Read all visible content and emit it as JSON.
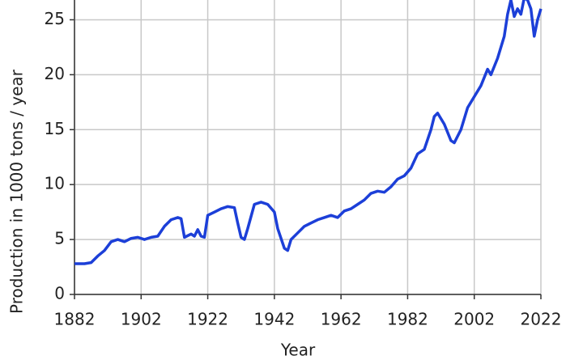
{
  "chart_data": {
    "type": "line",
    "xlabel": "Year",
    "ylabel": "Production in 1000 tons / year",
    "x": [
      1882,
      1885,
      1887,
      1889,
      1891,
      1893,
      1895,
      1897,
      1899,
      1901,
      1903,
      1905,
      1907,
      1909,
      1911,
      1913,
      1914,
      1915,
      1917,
      1918,
      1919,
      1920,
      1921,
      1922,
      1924,
      1926,
      1928,
      1930,
      1931,
      1932,
      1933,
      1934,
      1936,
      1938,
      1940,
      1942,
      1943,
      1945,
      1946,
      1947,
      1949,
      1951,
      1953,
      1955,
      1957,
      1959,
      1961,
      1963,
      1965,
      1967,
      1969,
      1971,
      1973,
      1975,
      1977,
      1979,
      1981,
      1983,
      1985,
      1987,
      1989,
      1990,
      1991,
      1993,
      1995,
      1996,
      1998,
      2000,
      2002,
      2004,
      2006,
      2007,
      2009,
      2011,
      2012,
      2013,
      2014,
      2015,
      2016,
      2017,
      2018,
      2019,
      2020,
      2021,
      2022
    ],
    "series": [
      {
        "name": "Production",
        "color": "#1c3fd8",
        "values": [
          2.8,
          2.8,
          2.9,
          3.5,
          4.0,
          4.8,
          5.0,
          4.8,
          5.1,
          5.2,
          5.0,
          5.2,
          5.3,
          6.2,
          6.8,
          7.0,
          6.9,
          5.2,
          5.5,
          5.3,
          5.9,
          5.3,
          5.2,
          7.2,
          7.5,
          7.8,
          8.0,
          7.9,
          6.5,
          5.2,
          5.0,
          6.0,
          8.2,
          8.4,
          8.2,
          7.5,
          6.0,
          4.2,
          4.0,
          5.0,
          5.6,
          6.2,
          6.5,
          6.8,
          7.0,
          7.2,
          7.0,
          7.6,
          7.8,
          8.2,
          8.6,
          9.2,
          9.4,
          9.3,
          9.8,
          10.5,
          10.8,
          11.5,
          12.8,
          13.2,
          15.0,
          16.2,
          16.5,
          15.5,
          14.0,
          13.8,
          15.0,
          17.0,
          18.0,
          19.0,
          20.5,
          20.0,
          21.5,
          23.5,
          25.5,
          26.8,
          25.3,
          26.0,
          25.5,
          27.0,
          26.8,
          26.0,
          23.5,
          25.0,
          26.0
        ]
      }
    ],
    "xlim": [
      1882,
      2022
    ],
    "ylim": [
      0,
      26.8
    ],
    "xticks": [
      1882,
      1902,
      1922,
      1942,
      1962,
      1982,
      2002,
      2022
    ],
    "yticks": [
      0,
      5,
      10,
      15,
      20,
      25
    ],
    "grid": true
  }
}
